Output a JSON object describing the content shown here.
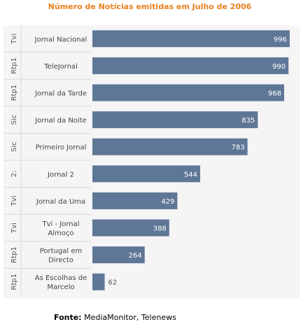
{
  "chart_data": {
    "type": "bar",
    "orientation": "horizontal",
    "title": "Número de Notícias emitidas em Julho de 2006",
    "source_label": "Fonte:",
    "source_text": "MediaMonitor, Telenews",
    "bar_color": "#5f7797",
    "title_color": "#e8801e",
    "rows": [
      {
        "group": "Tvi",
        "category": [
          "Jornal Nacional"
        ],
        "value": 996
      },
      {
        "group": "Rtp1",
        "category": [
          "TeleJornal"
        ],
        "value": 990
      },
      {
        "group": "Rtp1",
        "category": [
          "Jornal da Tarde"
        ],
        "value": 968
      },
      {
        "group": "Sic",
        "category": [
          "Jornal da Noite"
        ],
        "value": 835
      },
      {
        "group": "Sic",
        "category": [
          "Primeiro Jornal"
        ],
        "value": 783
      },
      {
        "group": "2:",
        "category": [
          "Jornal 2"
        ],
        "value": 544
      },
      {
        "group": "Tvi",
        "category": [
          "Jornal da Uma"
        ],
        "value": 429
      },
      {
        "group": "Tvi",
        "category": [
          "Tvi - Jornal",
          "Almoço"
        ],
        "value": 388
      },
      {
        "group": "Rtp1",
        "category": [
          "Portugal em",
          "Directo"
        ],
        "value": 264
      },
      {
        "group": "Rtp1",
        "category": [
          "As Escolhas de",
          "Marcelo"
        ],
        "value": 62
      }
    ],
    "xlim": [
      0,
      1000
    ],
    "grid": false,
    "legend": "none"
  }
}
